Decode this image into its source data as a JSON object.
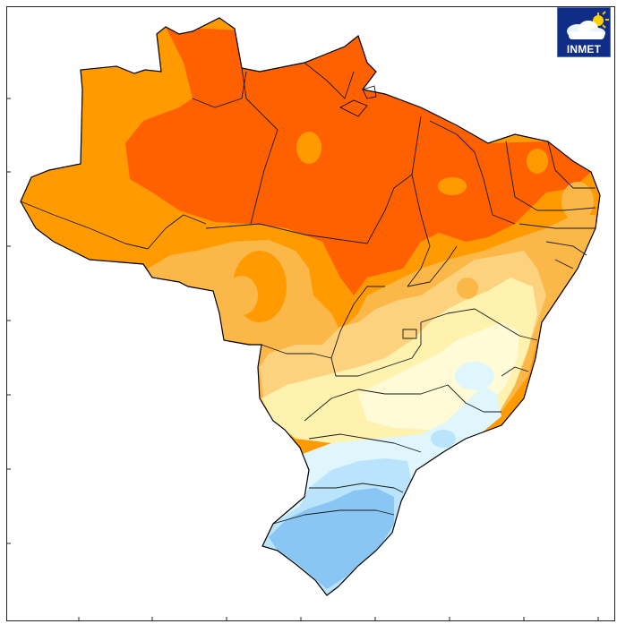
{
  "logo": {
    "text": "INMET",
    "icon": "cloud-sun-icon",
    "background": "#0f2c86"
  },
  "map": {
    "region": "Brazil",
    "palette": {
      "red_orange": "#ff6000",
      "orange": "#ff9a00",
      "light_orange": "#fbb848",
      "pale_orange": "#fdd27f",
      "pale_yellow": "#fff1ae",
      "cream": "#fffbd6",
      "pale_cyan": "#dff7fc",
      "light_blue": "#b9e4fb",
      "blue": "#89c6f4"
    }
  }
}
